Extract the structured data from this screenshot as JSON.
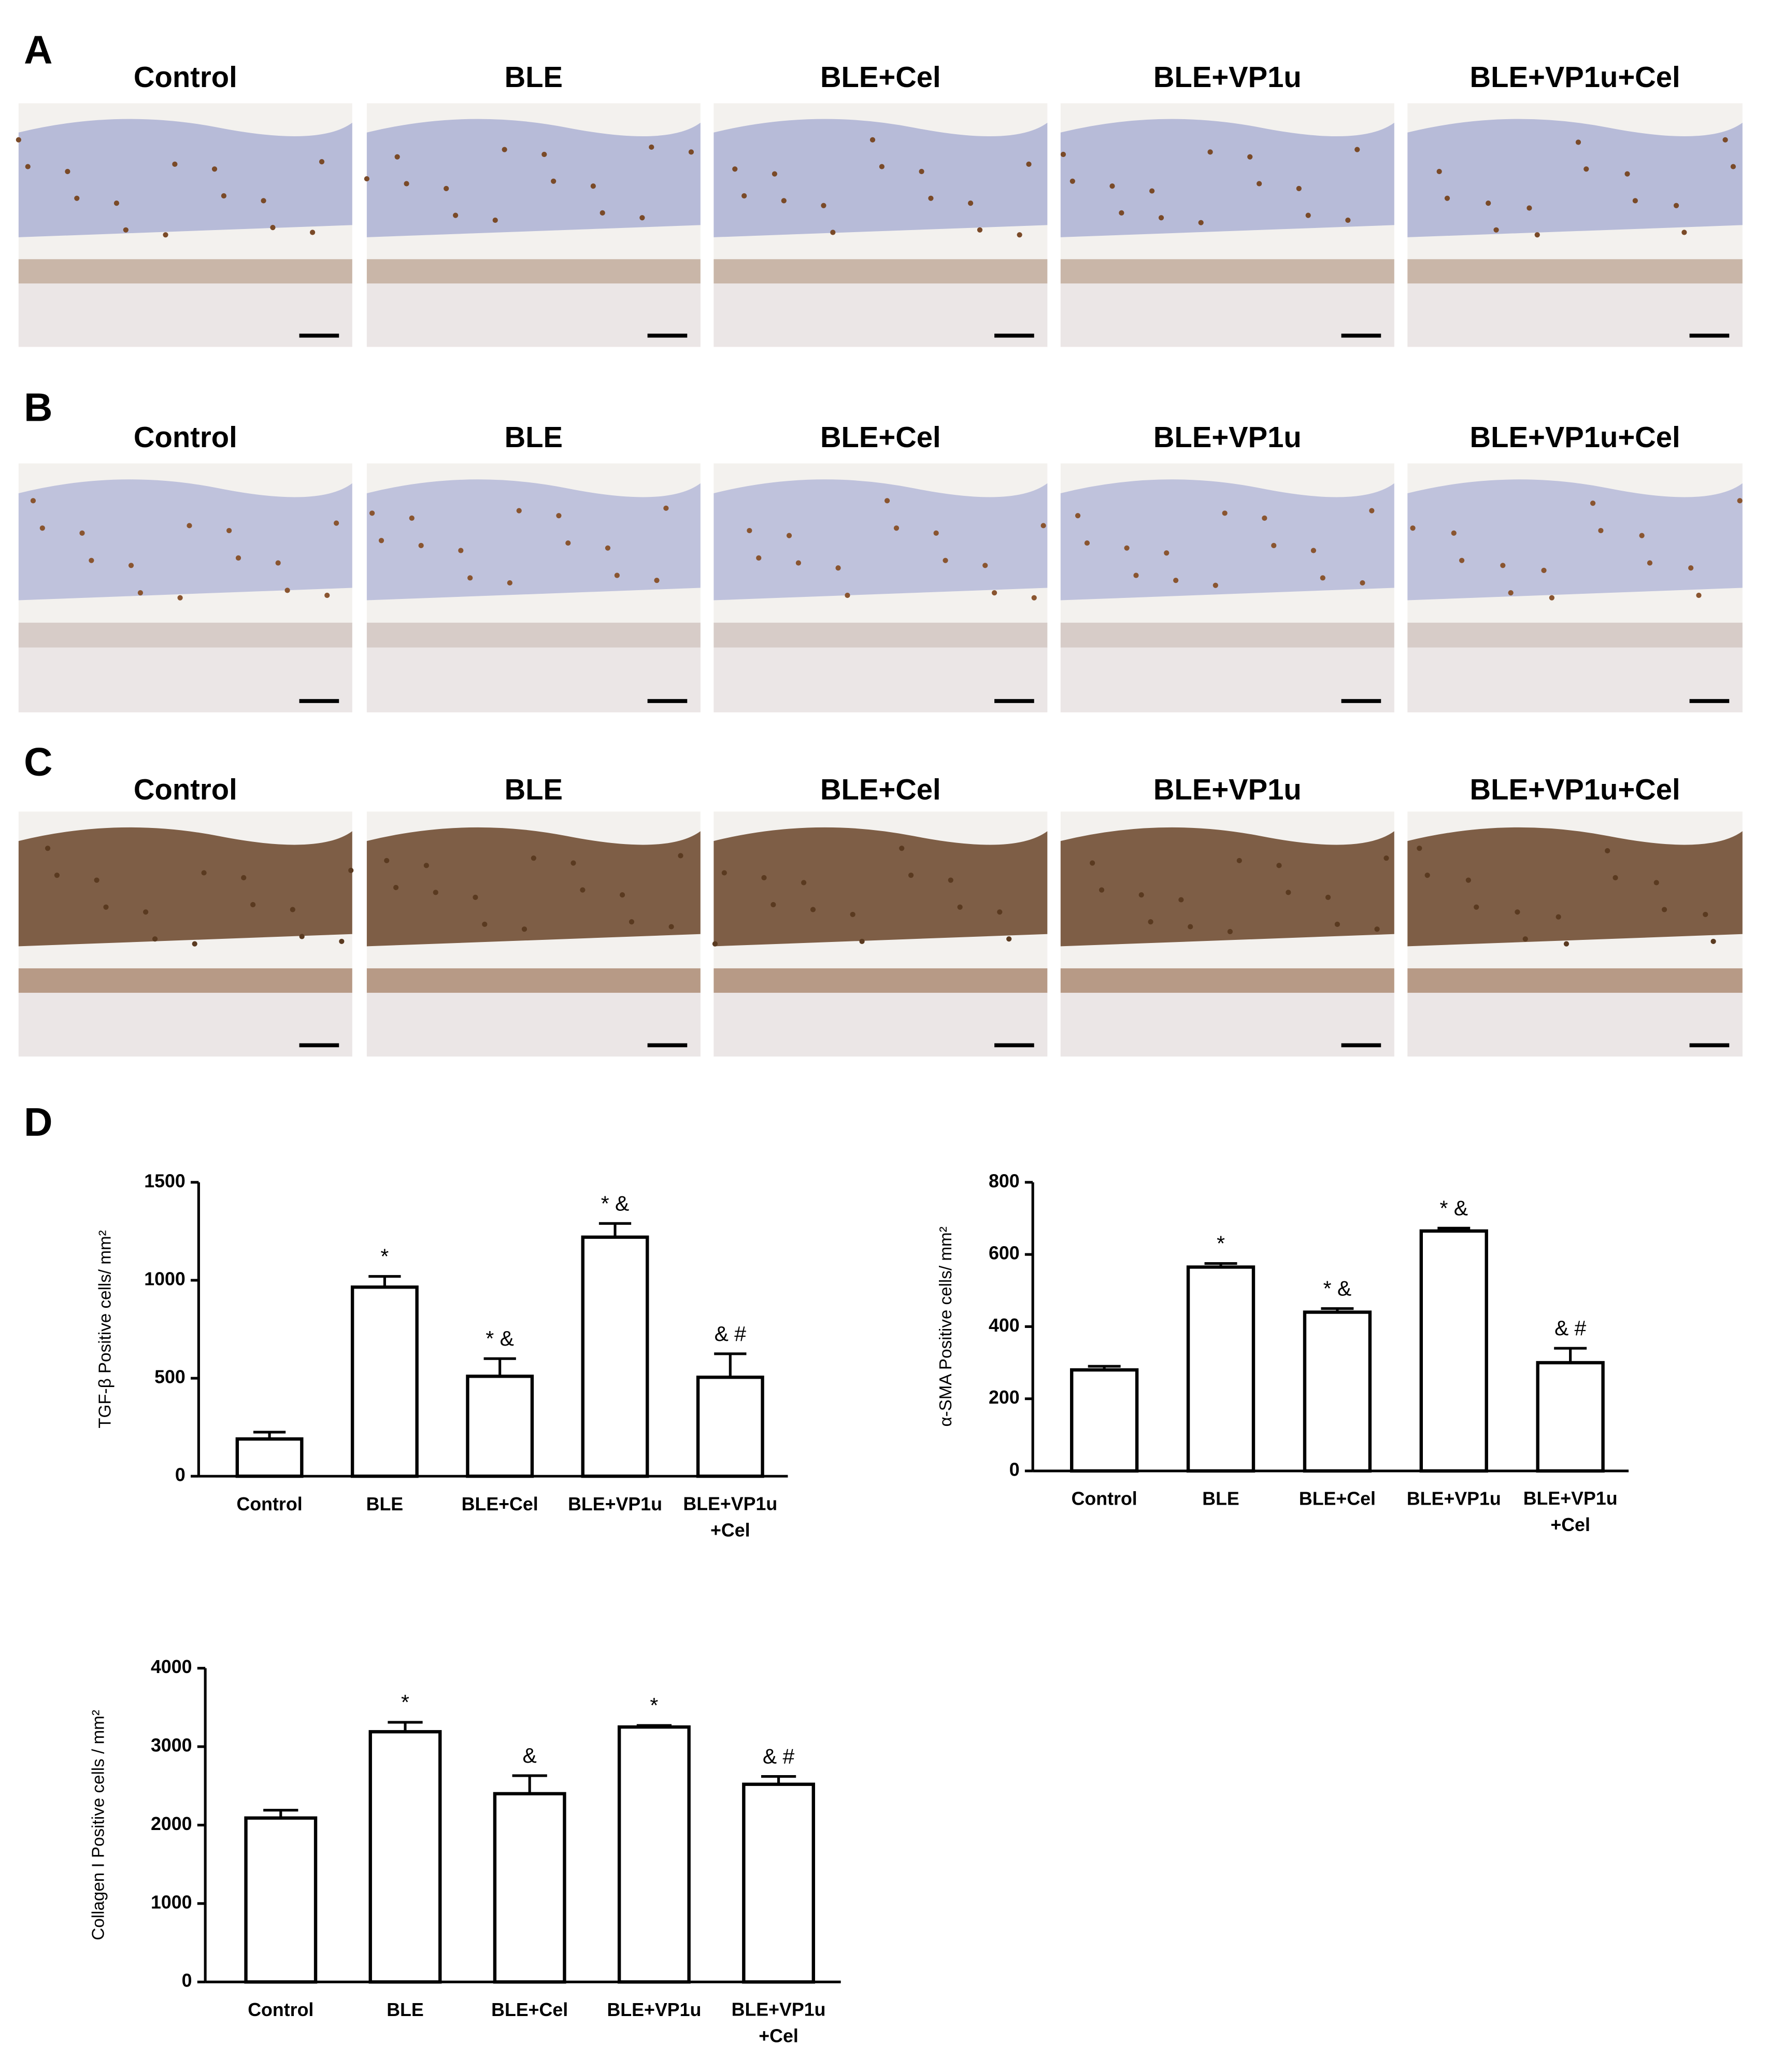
{
  "panels": [
    {
      "label": "A",
      "titles": [
        "Control",
        "BLE",
        "BLE+Cel",
        "BLE+VP1u",
        "BLE+VP1u+Cel"
      ]
    },
    {
      "label": "B",
      "titles": [
        "Control",
        "BLE",
        "BLE+Cel",
        "BLE+VP1u",
        "BLE+VP1u+Cel"
      ]
    },
    {
      "label": "C",
      "titles": [
        "Control",
        "BLE",
        "BLE+Cel",
        "BLE+VP1u",
        "BLE+VP1u+Cel"
      ]
    }
  ],
  "chart_panel_label": "D",
  "chart_data": [
    {
      "type": "bar",
      "ylabel": "TGF-β Positive cells/ mm²",
      "categories": [
        "Control",
        "BLE",
        "BLE+Cel",
        "BLE+VP1u",
        "BLE+VP1u +Cel"
      ],
      "values": [
        190,
        965,
        510,
        1220,
        505
      ],
      "errors": [
        35,
        55,
        90,
        70,
        120
      ],
      "significance": [
        null,
        "*",
        "* &",
        "* &",
        "& #"
      ],
      "ylim": [
        0,
        1500
      ],
      "yticks": [
        0,
        500,
        1000,
        1500
      ],
      "color": "#ffffff",
      "edgecolor": "#000000"
    },
    {
      "type": "bar",
      "ylabel": "α-SMA Positive cells/ mm²",
      "categories": [
        "Control",
        "BLE",
        "BLE+Cel",
        "BLE+VP1u",
        "BLE+VP1u +Cel"
      ],
      "values": [
        280,
        565,
        440,
        665,
        300
      ],
      "errors": [
        10,
        10,
        10,
        8,
        40
      ],
      "significance": [
        null,
        "*",
        "* &",
        "* &",
        "& #"
      ],
      "ylim": [
        0,
        800
      ],
      "yticks": [
        0,
        200,
        400,
        600,
        800
      ],
      "color": "#ffffff",
      "edgecolor": "#000000"
    },
    {
      "type": "bar",
      "ylabel": "Collagen I Positive cells / mm²",
      "categories": [
        "Control",
        "BLE",
        "BLE+Cel",
        "BLE+VP1u",
        "BLE+VP1u +Cel"
      ],
      "values": [
        2090,
        3190,
        2400,
        3250,
        2520
      ],
      "errors": [
        100,
        120,
        230,
        20,
        100
      ],
      "significance": [
        null,
        "*",
        "&",
        "*",
        "& #"
      ],
      "ylim": [
        0,
        4000
      ],
      "yticks": [
        0,
        1000,
        2000,
        3000,
        4000
      ],
      "color": "#ffffff",
      "edgecolor": "#000000"
    }
  ]
}
